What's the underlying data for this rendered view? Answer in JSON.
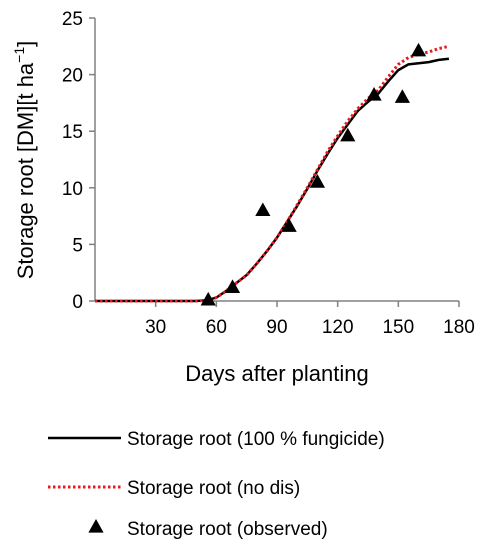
{
  "chart_data": {
    "type": "line",
    "xlabel": "Days after planting",
    "ylabel_main": "Storage root [DM][t ha",
    "ylabel_sup": "−1",
    "ylabel_close": "]",
    "xlim": [
      0,
      180
    ],
    "ylim": [
      0,
      25
    ],
    "xticks": [
      30,
      60,
      90,
      120,
      150,
      180
    ],
    "yticks": [
      0,
      5,
      10,
      15,
      20,
      25
    ],
    "grid": false,
    "legend_position": "bottom",
    "series": [
      {
        "name": "Storage root (100 % fungicide)",
        "style": "solid",
        "color": "#000000",
        "x": [
          0,
          50,
          55,
          60,
          65,
          70,
          75,
          80,
          85,
          90,
          95,
          100,
          105,
          110,
          115,
          120,
          125,
          130,
          135,
          140,
          145,
          150,
          155,
          160,
          165,
          170,
          175
        ],
        "y": [
          0,
          0,
          0.05,
          0.3,
          0.9,
          1.6,
          2.3,
          3.3,
          4.4,
          5.6,
          7.0,
          8.4,
          9.9,
          11.5,
          13.0,
          14.4,
          15.6,
          16.8,
          17.6,
          18.3,
          19.4,
          20.4,
          20.9,
          21.0,
          21.1,
          21.3,
          21.4
        ]
      },
      {
        "name": "Storage root (no dis)",
        "style": "dotted",
        "color": "#e8191f",
        "x": [
          0,
          50,
          55,
          60,
          65,
          70,
          75,
          80,
          85,
          90,
          95,
          100,
          105,
          110,
          115,
          120,
          125,
          130,
          135,
          140,
          145,
          150,
          155,
          160,
          165,
          170,
          175
        ],
        "y": [
          0,
          0,
          0.05,
          0.3,
          0.9,
          1.6,
          2.3,
          3.3,
          4.4,
          5.6,
          7.0,
          8.5,
          10.0,
          11.6,
          13.2,
          14.6,
          15.9,
          17.0,
          17.9,
          18.6,
          19.8,
          20.9,
          21.5,
          21.8,
          22.0,
          22.3,
          22.5
        ]
      },
      {
        "name": "Storage root (observed)",
        "style": "triangle-markers",
        "color": "#000000",
        "x": [
          56,
          68,
          83,
          96,
          110,
          125,
          138,
          152,
          160
        ],
        "y": [
          0.1,
          1.2,
          8.0,
          6.6,
          10.5,
          14.6,
          18.2,
          18.0,
          22.1
        ]
      }
    ]
  }
}
